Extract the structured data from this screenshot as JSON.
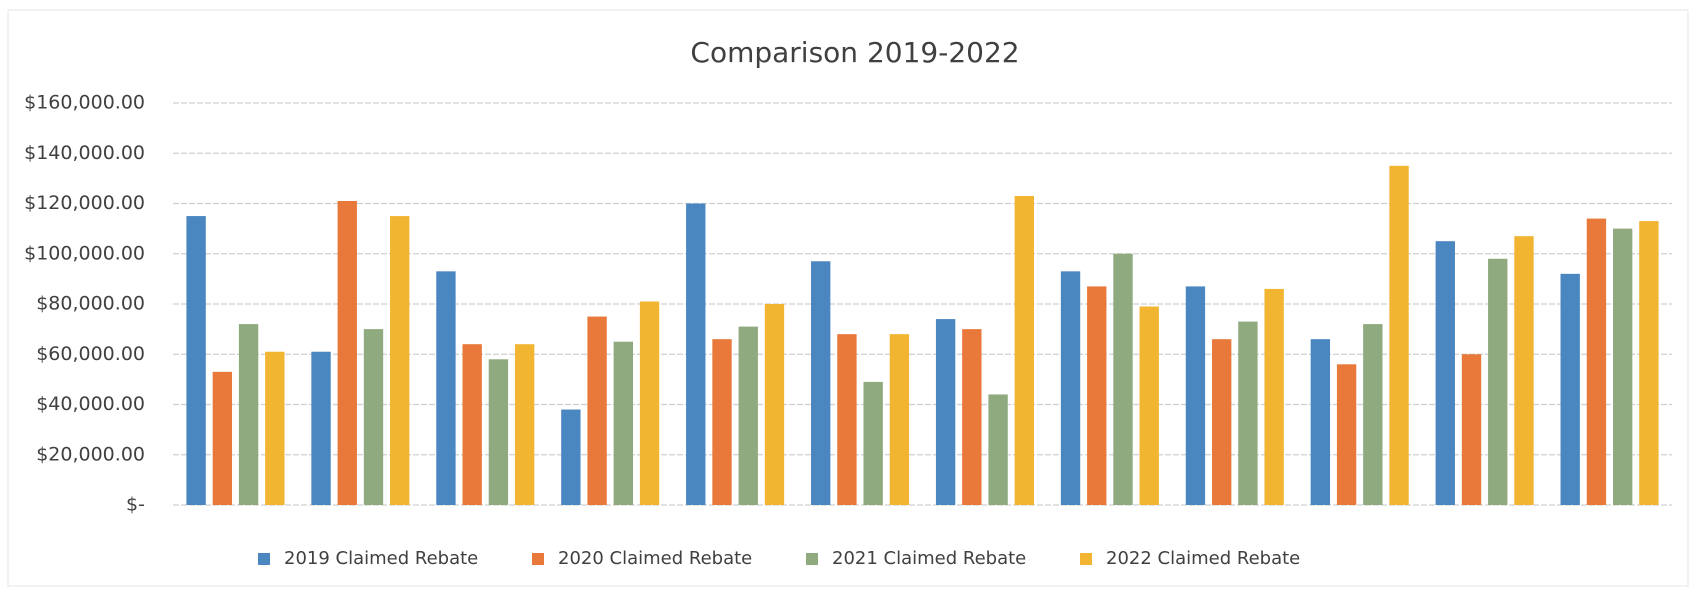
{
  "chart_data": {
    "type": "bar",
    "title": "Comparison 2019-2022",
    "categories": [
      null,
      null,
      null,
      null,
      null,
      null,
      null,
      null,
      null,
      null,
      null,
      null
    ],
    "series": [
      {
        "name": "2019 Claimed Rebate",
        "color": "#4a86c0",
        "values": [
          115000,
          61000,
          93000,
          38000,
          120000,
          97000,
          74000,
          93000,
          87000,
          66000,
          105000,
          92000
        ]
      },
      {
        "name": "2020 Claimed Rebate",
        "color": "#e8793a",
        "values": [
          53000,
          121000,
          64000,
          75000,
          66000,
          68000,
          70000,
          87000,
          66000,
          56000,
          60000,
          114000
        ]
      },
      {
        "name": "2021 Claimed Rebate",
        "color": "#8faa7e",
        "values": [
          72000,
          70000,
          58000,
          65000,
          71000,
          49000,
          44000,
          100000,
          73000,
          72000,
          98000,
          110000
        ]
      },
      {
        "name": "2022 Claimed Rebate",
        "color": "#f2b531",
        "values": [
          61000,
          115000,
          64000,
          81000,
          80000,
          68000,
          123000,
          79000,
          86000,
          135000,
          107000,
          113000
        ]
      }
    ],
    "ylim": [
      0,
      160000
    ],
    "yticks": [
      {
        "value": 0,
        "label": "$-"
      },
      {
        "value": 20000,
        "label": "$20,000.00"
      },
      {
        "value": 40000,
        "label": "$40,000.00"
      },
      {
        "value": 60000,
        "label": "$60,000.00"
      },
      {
        "value": 80000,
        "label": "$80,000.00"
      },
      {
        "value": 100000,
        "label": "$100,000.00"
      },
      {
        "value": 120000,
        "label": "$120,000.00"
      },
      {
        "value": 140000,
        "label": "$140,000.00"
      },
      {
        "value": 160000,
        "label": "$160,000.00"
      }
    ],
    "grid": true,
    "legend": "bottom"
  }
}
